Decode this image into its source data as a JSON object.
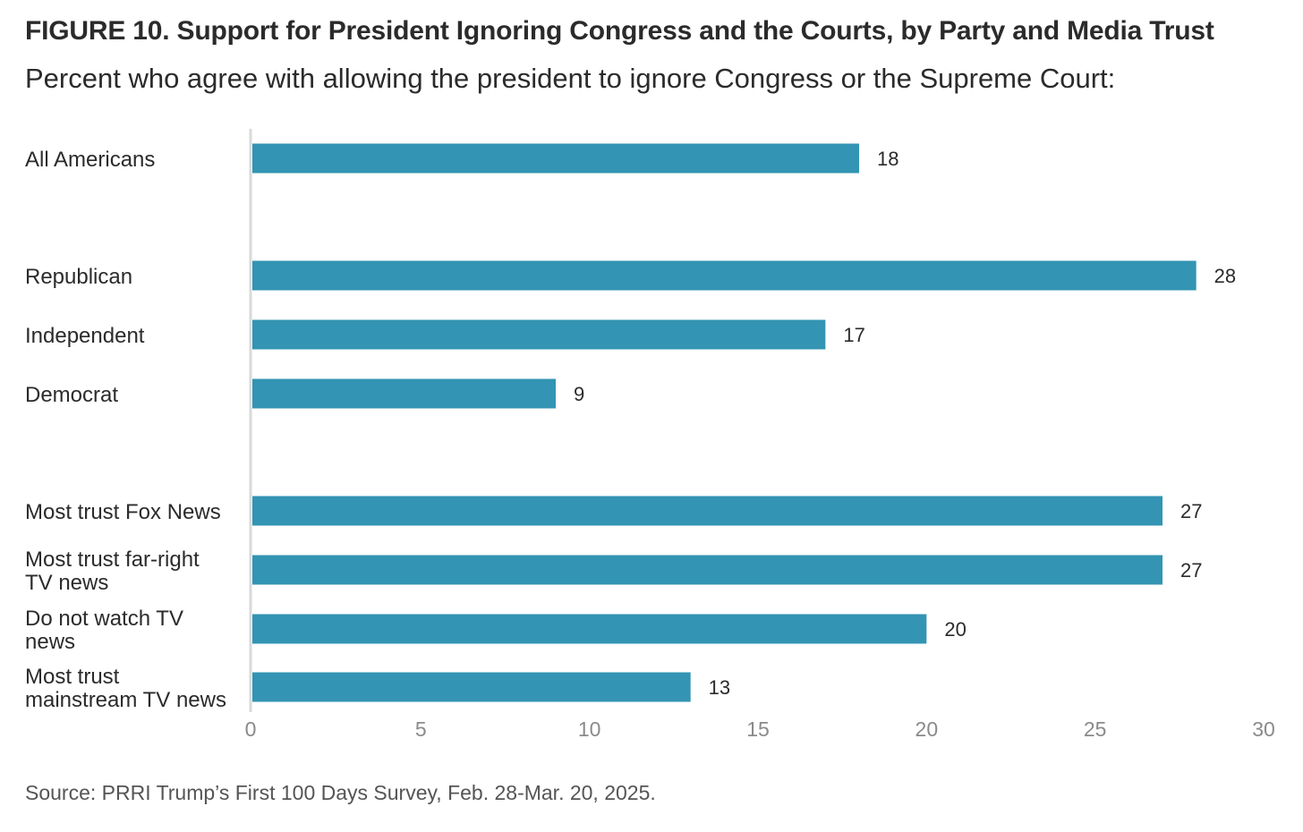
{
  "chart_data": {
    "type": "bar",
    "orientation": "horizontal",
    "title": "FIGURE 10.  Support for President Ignoring Congress and the Courts, by Party and Media Trust",
    "subtitle": "Percent who agree with allowing the president to ignore Congress or the Supreme Court:",
    "categories": [
      [
        "All Americans"
      ],
      [
        "Republican"
      ],
      [
        "Independent"
      ],
      [
        "Democrat"
      ],
      [
        "Most trust Fox News"
      ],
      [
        "Most trust far-right",
        "TV news"
      ],
      [
        "Do not watch TV",
        "news"
      ],
      [
        "Most trust",
        "mainstream TV news"
      ]
    ],
    "values": [
      18,
      28,
      17,
      9,
      27,
      27,
      20,
      13
    ],
    "groups": [
      [
        0
      ],
      [
        1,
        2,
        3
      ],
      [
        4,
        5,
        6,
        7
      ]
    ],
    "xlim": [
      0,
      30
    ],
    "xticks": [
      0,
      5,
      10,
      15,
      20,
      25,
      30
    ],
    "xlabel": "",
    "ylabel": "",
    "bar_color": "#3394b3",
    "grid": false,
    "legend": "none"
  },
  "source": "Source: PRRI Trump’s First 100 Days Survey, Feb. 28-Mar. 20, 2025."
}
